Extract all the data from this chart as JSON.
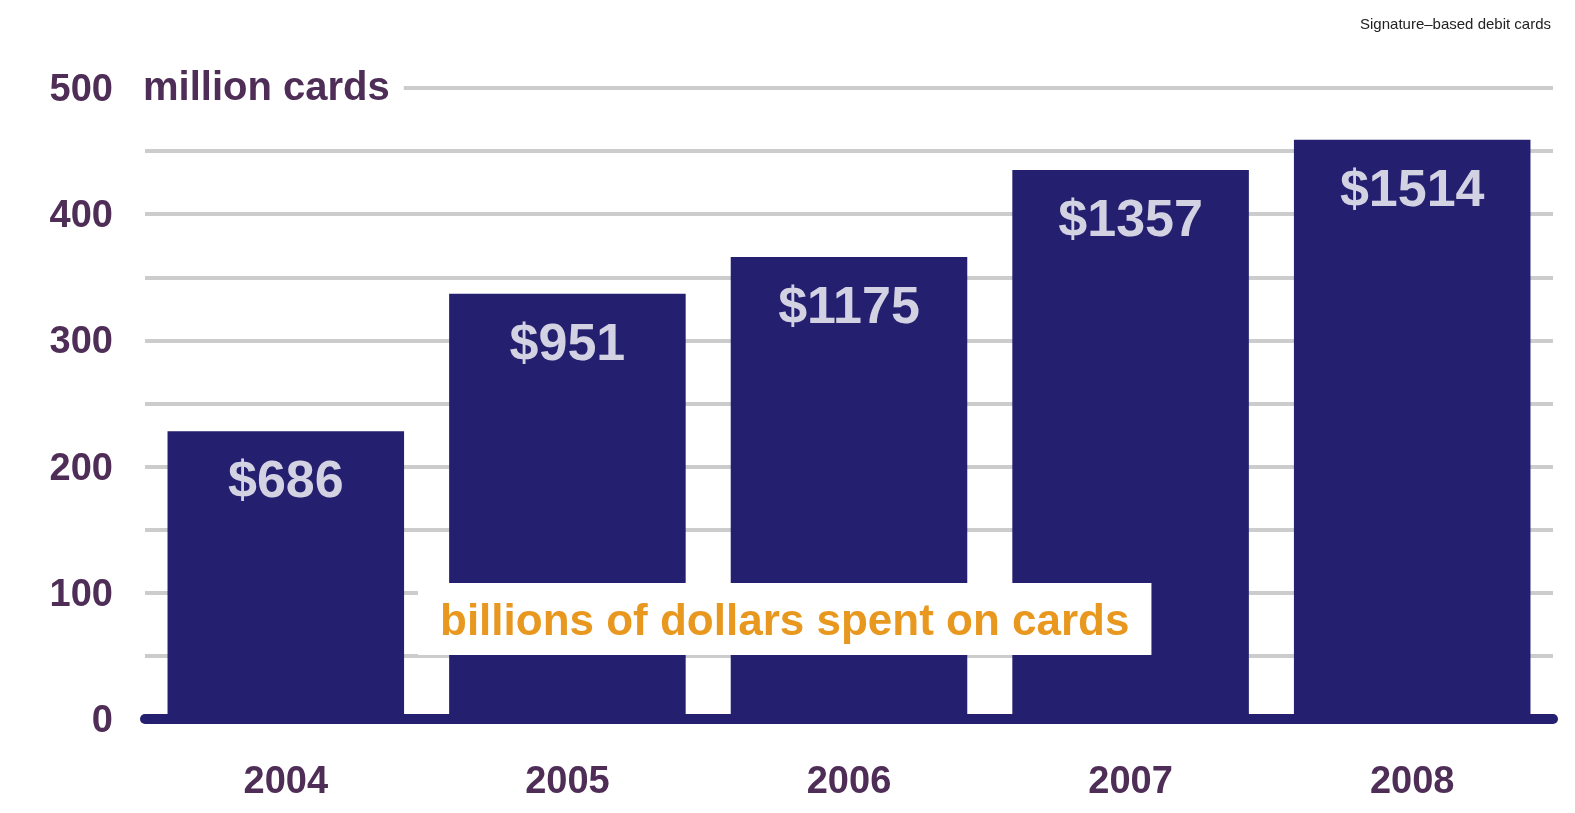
{
  "chart_data": {
    "type": "bar",
    "ylabel": "million cards",
    "categories": [
      "2004",
      "2005",
      "2006",
      "2007",
      "2008"
    ],
    "values": [
      228,
      337,
      366,
      435,
      459
    ],
    "color": "#241f6e",
    "ylim": [
      0,
      500
    ],
    "yticks": [
      0,
      {
        "value": 50,
        "label": null
      },
      100,
      {
        "value": 150,
        "label": null
      },
      200,
      {
        "value": 250,
        "label": null
      },
      300,
      {
        "value": 350,
        "label": null
      },
      400,
      {
        "value": 450,
        "label": null
      },
      500
    ],
    "grid": true,
    "annotations": [
      "billions of dollars spent on cards",
      "Signature–based debit cards",
      {
        "text": "$686",
        "x": "2004",
        "y": 228
      },
      {
        "text": "$951",
        "x": "2005",
        "y": 337
      },
      {
        "text": "$1175",
        "x": "2006",
        "y": 366
      },
      {
        "text": "$1357",
        "x": "2007",
        "y": 435
      },
      {
        "text": "$1514",
        "x": "2008",
        "y": 459
      }
    ]
  }
}
